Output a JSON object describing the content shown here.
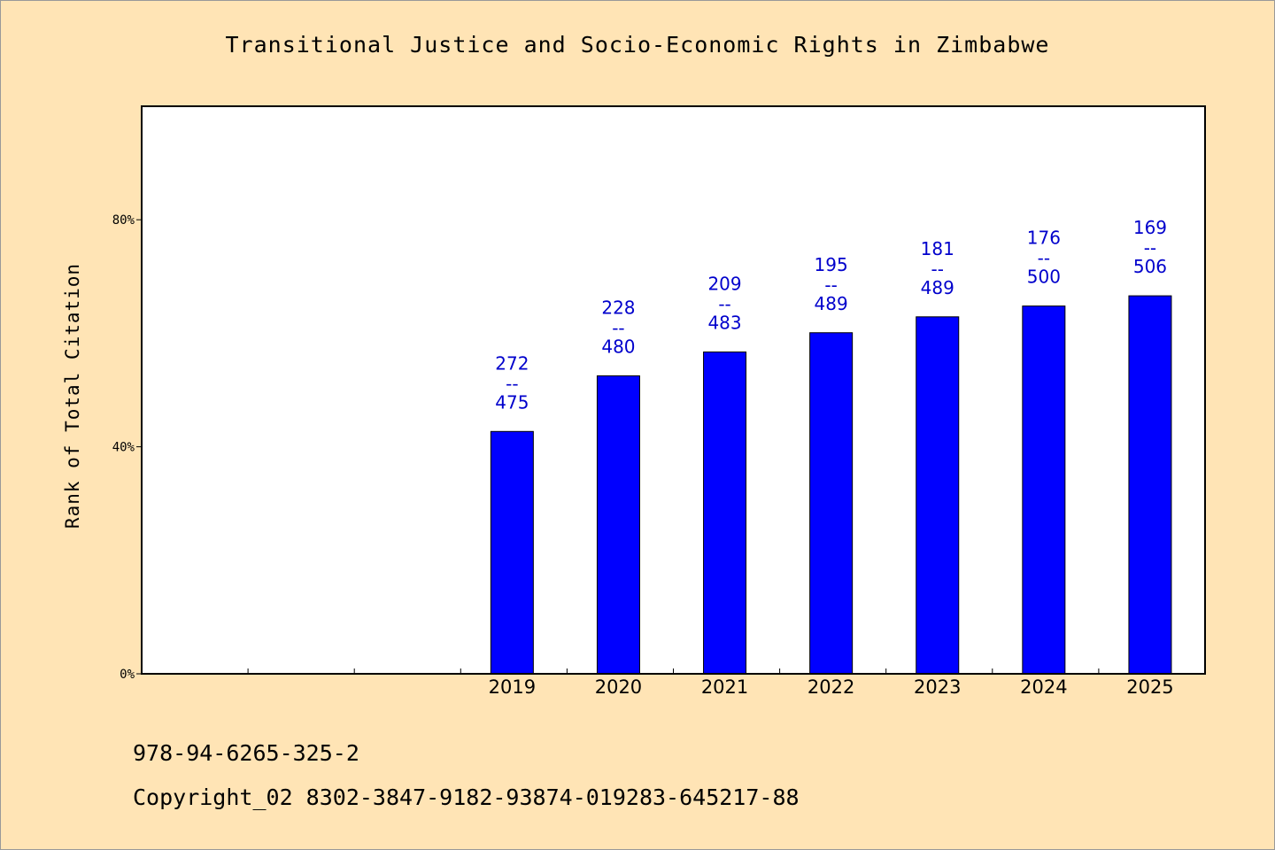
{
  "colors": {
    "background": "#ffe4b5",
    "plot_background": "#ffffff",
    "bar": "#0000ff",
    "bar_label": "#0000cc",
    "axis": "#000000"
  },
  "chart_data": {
    "type": "bar",
    "title": "Transitional Justice and Socio-Economic Rights in Zimbabwe",
    "xlabel": "",
    "ylabel": "Rank of Total Citation",
    "ylim": [
      0,
      100
    ],
    "y_ticks": [
      {
        "value": 0,
        "label": "0%"
      },
      {
        "value": 40,
        "label": "40%"
      },
      {
        "value": 80,
        "label": "80%"
      }
    ],
    "slots": 10,
    "categories": [
      "2019",
      "2020",
      "2021",
      "2022",
      "2023",
      "2024",
      "2025"
    ],
    "first_category_slot": 3,
    "values": [
      42.7,
      52.5,
      56.7,
      60.1,
      62.9,
      64.8,
      66.6
    ],
    "bar_labels": [
      {
        "rank": "272",
        "sep": "--",
        "total": "475"
      },
      {
        "rank": "228",
        "sep": "--",
        "total": "480"
      },
      {
        "rank": "209",
        "sep": "--",
        "total": "483"
      },
      {
        "rank": "195",
        "sep": "--",
        "total": "489"
      },
      {
        "rank": "181",
        "sep": "--",
        "total": "489"
      },
      {
        "rank": "176",
        "sep": "--",
        "total": "500"
      },
      {
        "rank": "169",
        "sep": "--",
        "total": "506"
      }
    ],
    "grid": false,
    "legend": "none"
  },
  "footer": {
    "isbn": "978-94-6265-325-2",
    "copyright": "Copyright_02 8302-3847-9182-93874-019283-645217-88"
  }
}
